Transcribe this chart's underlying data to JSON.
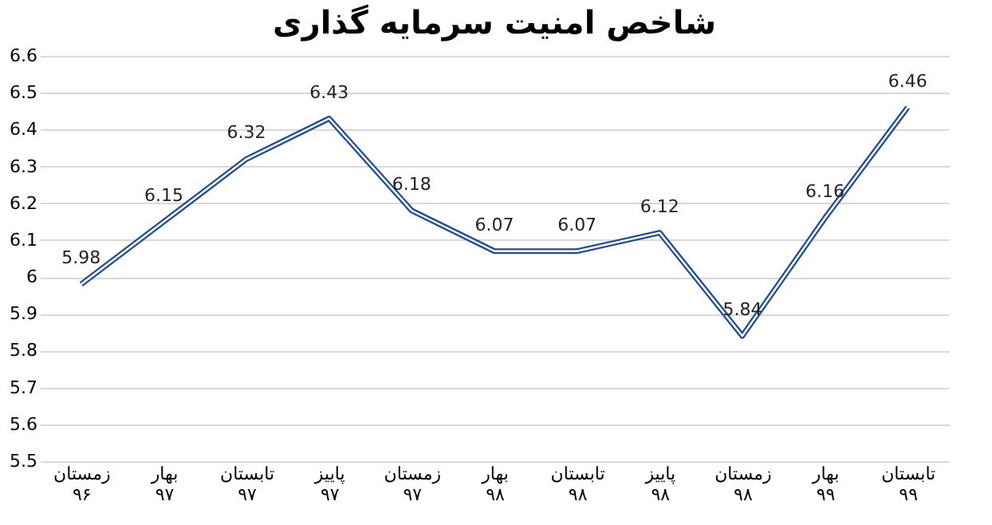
{
  "chart_data": {
    "type": "line",
    "title": "شاخص امنیت سرمایه گذاری",
    "categories": [
      "زمستان ۹۶",
      "بهار ۹۷",
      "تابستان ۹۷",
      "پاییز ۹۷",
      "زمستان ۹۷",
      "بهار ۹۸",
      "تابستان ۹۸",
      "پاییز ۹۸",
      "زمستان ۹۸",
      "بهار ۹۹",
      "تابستان ۹۹"
    ],
    "series": [
      {
        "color": "#1f4e96",
        "values": [
          5.98,
          6.15,
          6.32,
          6.43,
          6.18,
          6.07,
          6.07,
          6.12,
          5.84,
          6.16,
          6.46
        ]
      }
    ],
    "ylim": [
      5.5,
      6.6
    ],
    "yticks": [
      5.5,
      5.6,
      5.7,
      5.8,
      5.9,
      6,
      6.1,
      6.2,
      6.3,
      6.4,
      6.5,
      6.6
    ],
    "grid": "y",
    "data_labels": true,
    "marker": "none",
    "line_style": "solid"
  }
}
